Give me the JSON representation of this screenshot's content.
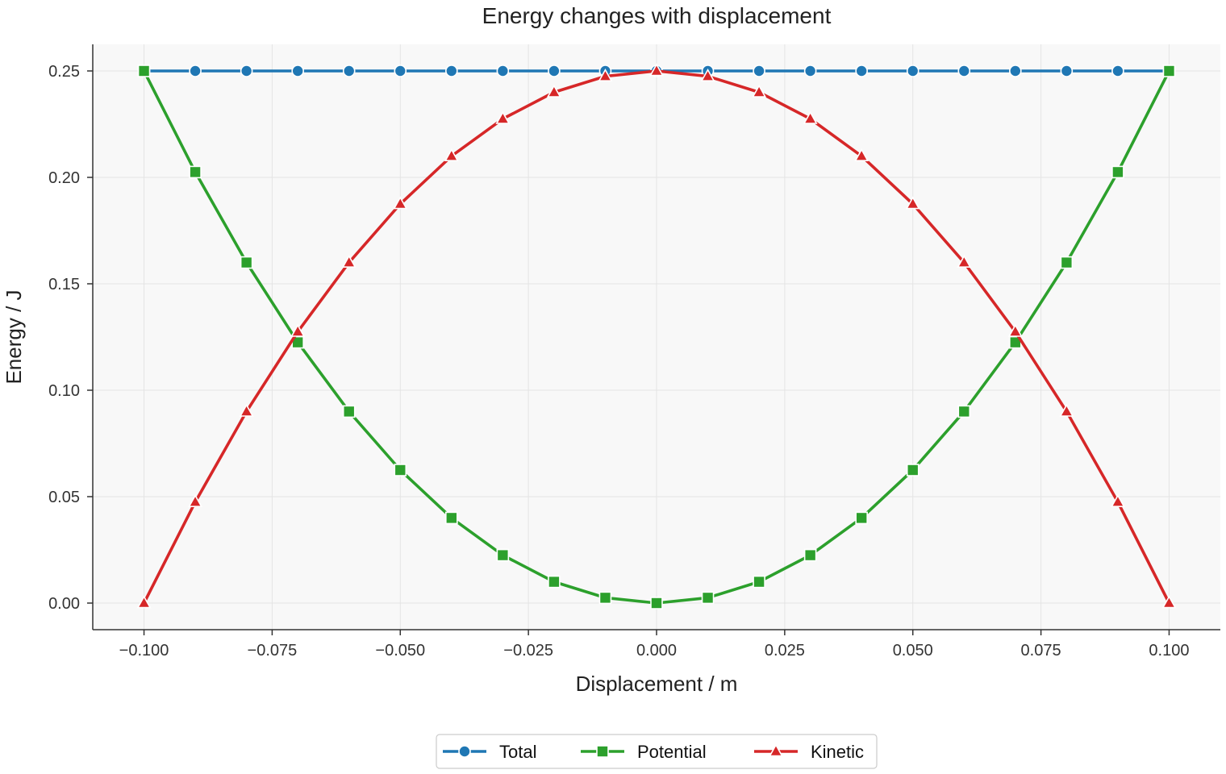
{
  "chart_data": {
    "type": "line",
    "title": "Energy changes with displacement",
    "xlabel": "Displacement / m",
    "ylabel": "Energy / J",
    "xlim": [
      -0.11,
      0.11
    ],
    "ylim": [
      -0.0125,
      0.2625
    ],
    "x_ticks": [
      "−0.100",
      "−0.075",
      "−0.050",
      "−0.025",
      "0.000",
      "0.025",
      "0.050",
      "0.075",
      "0.100"
    ],
    "x_tick_values": [
      -0.1,
      -0.075,
      -0.05,
      -0.025,
      0.0,
      0.025,
      0.05,
      0.075,
      0.1
    ],
    "y_ticks": [
      "0.00",
      "0.05",
      "0.10",
      "0.15",
      "0.20",
      "0.25"
    ],
    "y_tick_values": [
      0.0,
      0.05,
      0.1,
      0.15,
      0.2,
      0.25
    ],
    "grid": true,
    "legend_placement": "bottom-center",
    "background": "#f8f8f8",
    "x": [
      -0.1,
      -0.09,
      -0.08,
      -0.07,
      -0.06,
      -0.05,
      -0.04,
      -0.03,
      -0.02,
      -0.01,
      0.0,
      0.01,
      0.02,
      0.03,
      0.04,
      0.05,
      0.06,
      0.07,
      0.08,
      0.09,
      0.1
    ],
    "series": [
      {
        "name": "Total",
        "color": "#1f77b4",
        "marker": "circle",
        "values": [
          0.25,
          0.25,
          0.25,
          0.25,
          0.25,
          0.25,
          0.25,
          0.25,
          0.25,
          0.25,
          0.25,
          0.25,
          0.25,
          0.25,
          0.25,
          0.25,
          0.25,
          0.25,
          0.25,
          0.25,
          0.25
        ]
      },
      {
        "name": "Potential",
        "color": "#2ca02c",
        "marker": "square",
        "values": [
          0.25,
          0.2025,
          0.16,
          0.1225,
          0.09,
          0.0625,
          0.04,
          0.0225,
          0.01,
          0.0025,
          0.0,
          0.0025,
          0.01,
          0.0225,
          0.04,
          0.0625,
          0.09,
          0.1225,
          0.16,
          0.2025,
          0.25
        ]
      },
      {
        "name": "Kinetic",
        "color": "#d62728",
        "marker": "triangle",
        "values": [
          0.0,
          0.0475,
          0.09,
          0.1275,
          0.16,
          0.1875,
          0.21,
          0.2275,
          0.24,
          0.2475,
          0.25,
          0.2475,
          0.24,
          0.2275,
          0.21,
          0.1875,
          0.16,
          0.1275,
          0.09,
          0.0475,
          0.0
        ]
      }
    ]
  }
}
